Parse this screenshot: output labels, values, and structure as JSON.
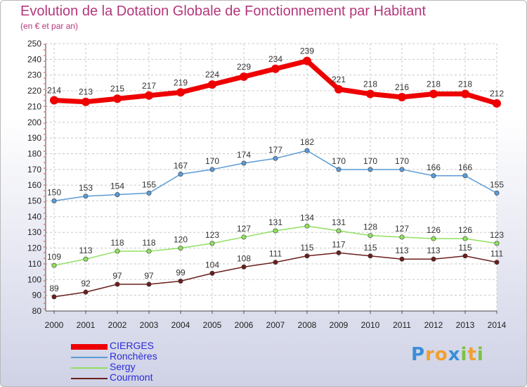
{
  "header": {
    "title": "Evolution de la Dotation Globale de Fonctionnement par Habitant",
    "subtitle": "(en € et par an)"
  },
  "chart_data": {
    "type": "line",
    "title": "Evolution de la Dotation Globale de Fonctionnement par Habitant",
    "subtitle": "(en € et par an)",
    "xlabel": "",
    "ylabel": "",
    "x": [
      "2000",
      "2001",
      "2002",
      "2003",
      "2004",
      "2005",
      "2006",
      "2007",
      "2008",
      "2009",
      "2010",
      "2011",
      "2012",
      "2013",
      "2014"
    ],
    "ylim": [
      80,
      250
    ],
    "yticks": [
      80,
      90,
      100,
      110,
      120,
      130,
      140,
      150,
      160,
      170,
      180,
      190,
      200,
      210,
      220,
      230,
      240,
      250
    ],
    "grid": true,
    "legend_position": "bottom-left",
    "series": [
      {
        "name": "CIERGES",
        "color": "#ee0000",
        "values": [
          214,
          213,
          215,
          217,
          219,
          224,
          229,
          234,
          239,
          221,
          218,
          216,
          218,
          218,
          212
        ]
      },
      {
        "name": "Ronchères",
        "color": "#5b9bd5",
        "values": [
          150,
          153,
          154,
          155,
          167,
          170,
          174,
          177,
          182,
          170,
          170,
          170,
          166,
          166,
          155
        ]
      },
      {
        "name": "Sergy",
        "color": "#90e060",
        "values": [
          109,
          113,
          118,
          118,
          120,
          123,
          127,
          131,
          134,
          131,
          128,
          127,
          126,
          126,
          123
        ]
      },
      {
        "name": "Courmont",
        "color": "#6b1e1e",
        "values": [
          89,
          92,
          97,
          97,
          99,
          104,
          108,
          111,
          115,
          117,
          115,
          113,
          113,
          115,
          111
        ]
      }
    ]
  },
  "logo": {
    "letters": [
      {
        "ch": "P",
        "color": "#3a8fd8"
      },
      {
        "ch": "r",
        "color": "#f0a030"
      },
      {
        "ch": "o",
        "color": "#f0a030"
      },
      {
        "ch": "x",
        "color": "#3a8fd8"
      },
      {
        "ch": "i",
        "color": "#7cc242"
      },
      {
        "ch": "t",
        "color": "#f0a030"
      },
      {
        "ch": "i",
        "color": "#7cc242"
      }
    ]
  }
}
